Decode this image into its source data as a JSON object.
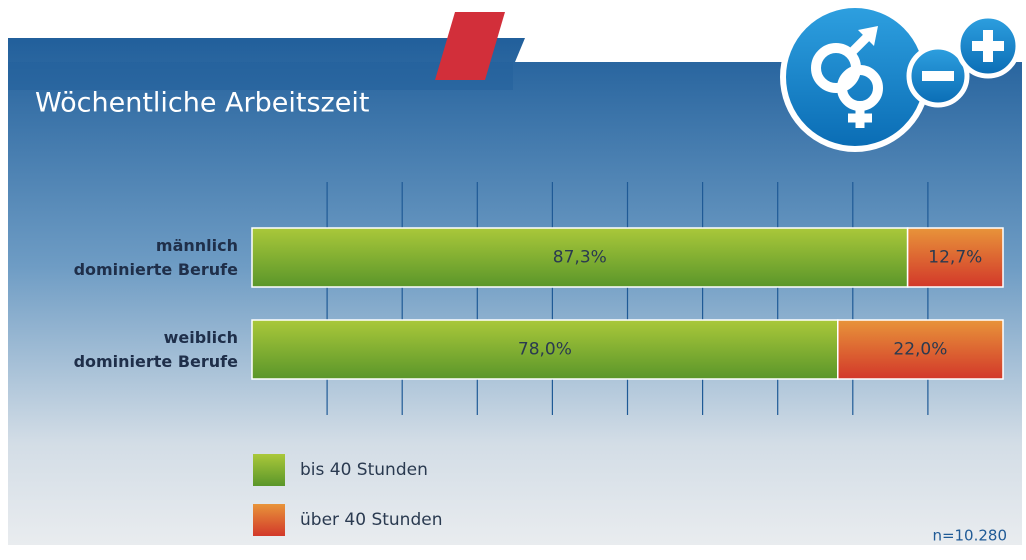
{
  "chart_data": {
    "type": "stacked_barh",
    "title": "Wöchentliche Arbeitszeit",
    "categories": [
      "männlich\ndominierte Berufe",
      "weiblich\ndominierte Berufe"
    ],
    "series": [
      {
        "name": "bis 40 Stunden",
        "color": "#7fae30",
        "values": [
          87.3,
          78.0
        ],
        "value_labels": [
          "87,3%",
          "78,0%"
        ]
      },
      {
        "name": "über 40 Stunden",
        "color": "#df5f30",
        "values": [
          12.7,
          22.0
        ],
        "value_labels": [
          "12,7%",
          "22,0%"
        ]
      }
    ],
    "xlim": [
      0,
      100
    ],
    "xticks": [
      10,
      20,
      30,
      40,
      50,
      60,
      70,
      80,
      90
    ],
    "grid": true,
    "annotation": "n=10.280"
  }
}
